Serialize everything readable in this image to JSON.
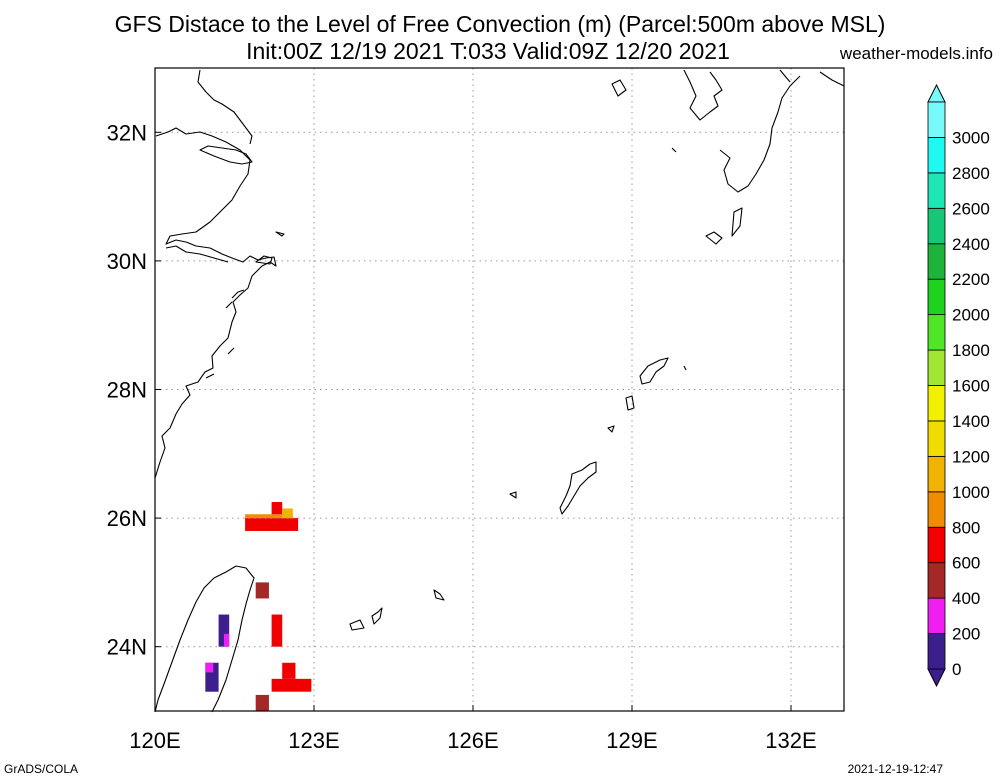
{
  "title_line1": "GFS Distace to the Level of Free Convection (m) (Parcel:500m above MSL)",
  "title_line2": "Init:00Z 12/19 2021 T:033 Valid:09Z 12/20 2021",
  "credit": "weather-models.info",
  "footer_left": "GrADS/COLA",
  "footer_right": "2021-12-19-12:47",
  "map": {
    "lon_range": [
      120,
      133
    ],
    "lat_range": [
      23,
      33
    ],
    "lon_ticks": [
      {
        "value": 120,
        "label": "120E"
      },
      {
        "value": 123,
        "label": "123E"
      },
      {
        "value": 126,
        "label": "126E"
      },
      {
        "value": 129,
        "label": "129E"
      },
      {
        "value": 132,
        "label": "132E"
      }
    ],
    "lat_ticks": [
      {
        "value": 24,
        "label": "24N"
      },
      {
        "value": 26,
        "label": "26N"
      },
      {
        "value": 28,
        "label": "28N"
      },
      {
        "value": 30,
        "label": "30N"
      },
      {
        "value": 32,
        "label": "32N"
      }
    ]
  },
  "colorbar": {
    "levels": [
      "0",
      "200",
      "400",
      "600",
      "800",
      "1000",
      "1200",
      "1400",
      "1600",
      "1800",
      "2000",
      "2200",
      "2400",
      "2600",
      "2800",
      "3000"
    ],
    "colors": [
      "#3c1e8c",
      "#f01ef0",
      "#a52828",
      "#f00000",
      "#f08c00",
      "#f0b400",
      "#f0dc00",
      "#f0f000",
      "#a0e632",
      "#50e628",
      "#1ed21e",
      "#1eb43c",
      "#14c878",
      "#1ee6b4",
      "#1efaf0",
      "#78fafa"
    ],
    "under_color": "#3c1e8c",
    "over_color": "#78fafa"
  },
  "cells": [
    {
      "lon0": 121.7,
      "lon1": 122.7,
      "lat0": 25.8,
      "lat1": 26.0,
      "color": "#f00000"
    },
    {
      "lon0": 121.7,
      "lon1": 122.6,
      "lat0": 26.0,
      "lat1": 26.06,
      "color": "#f08c00"
    },
    {
      "lon0": 122.2,
      "lon1": 122.4,
      "lat0": 26.06,
      "lat1": 26.25,
      "color": "#f00000"
    },
    {
      "lon0": 122.4,
      "lon1": 122.6,
      "lat0": 26.0,
      "lat1": 26.15,
      "color": "#f0b400"
    },
    {
      "lon0": 121.9,
      "lon1": 122.15,
      "lat0": 24.75,
      "lat1": 25.0,
      "color": "#a52828"
    },
    {
      "lon0": 122.2,
      "lon1": 122.4,
      "lat0": 24.0,
      "lat1": 24.5,
      "color": "#f00000"
    },
    {
      "lon0": 121.2,
      "lon1": 121.4,
      "lat0": 24.0,
      "lat1": 24.5,
      "color": "#3c1e8c"
    },
    {
      "lon0": 121.3,
      "lon1": 121.4,
      "lat0": 24.0,
      "lat1": 24.2,
      "color": "#f01ef0"
    },
    {
      "lon0": 120.95,
      "lon1": 121.2,
      "lat0": 23.3,
      "lat1": 23.75,
      "color": "#3c1e8c"
    },
    {
      "lon0": 120.95,
      "lon1": 121.1,
      "lat0": 23.6,
      "lat1": 23.75,
      "color": "#f01ef0"
    },
    {
      "lon0": 122.4,
      "lon1": 122.65,
      "lat0": 23.5,
      "lat1": 23.75,
      "color": "#f00000"
    },
    {
      "lon0": 122.2,
      "lon1": 122.95,
      "lat0": 23.3,
      "lat1": 23.5,
      "color": "#f00000"
    },
    {
      "lon0": 121.9,
      "lon1": 122.15,
      "lat0": 23.0,
      "lat1": 23.25,
      "color": "#a52828"
    }
  ]
}
